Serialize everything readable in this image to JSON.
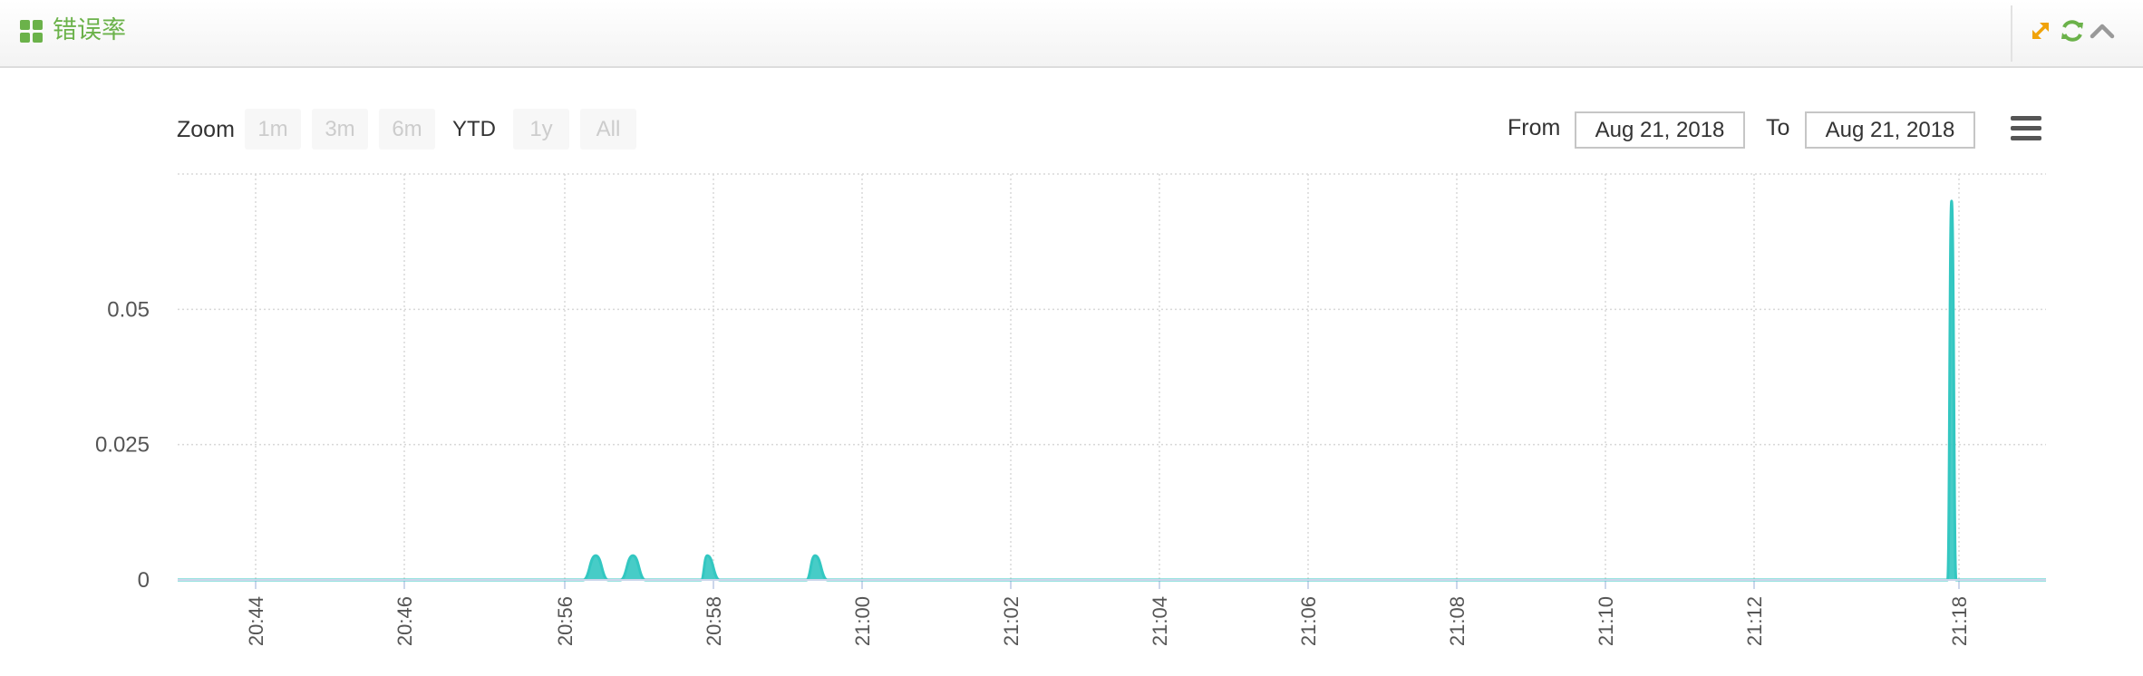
{
  "header": {
    "title": "错误率",
    "accent_color": "#6bb24a",
    "buttons": [
      {
        "name": "expand-icon",
        "color": "#f0a30a"
      },
      {
        "name": "refresh-icon",
        "color": "#6bb24a"
      },
      {
        "name": "chevron-up-icon",
        "color": "#999999"
      }
    ]
  },
  "range_selector": {
    "zoom_label": "Zoom",
    "buttons": [
      "1m",
      "3m",
      "6m",
      "YTD",
      "1y",
      "All"
    ],
    "selected": "YTD",
    "from_label": "From",
    "from_value": "Aug 21, 2018",
    "to_label": "To",
    "to_value": "Aug 21, 2018"
  },
  "menu": {
    "icon": "hamburger-menu-icon"
  },
  "chart_data": {
    "type": "area",
    "series": [
      {
        "color": "#33c7c1",
        "points": [
          [
            "20:42:57",
            0
          ],
          [
            "20:56:15",
            0
          ],
          [
            "20:56:25",
            0.0045
          ],
          [
            "20:56:35",
            0
          ],
          [
            "20:56:45",
            0
          ],
          [
            "20:56:55",
            0.0045
          ],
          [
            "20:57:05",
            0
          ],
          [
            "20:57:50",
            0
          ],
          [
            "20:57:55",
            0.0045
          ],
          [
            "20:58:05",
            0
          ],
          [
            "20:59:15",
            0
          ],
          [
            "20:59:22",
            0.0045
          ],
          [
            "20:59:32",
            0
          ],
          [
            "21:17:40",
            0
          ],
          [
            "21:17:47",
            0.07
          ],
          [
            "21:17:55",
            0
          ],
          [
            "21:18:58",
            0
          ]
        ]
      }
    ],
    "x_ticks": [
      "20:44",
      "20:46",
      "20:56",
      "20:58",
      "21:00",
      "21:02",
      "21:04",
      "21:06",
      "21:08",
      "21:10",
      "21:12",
      "21:18"
    ],
    "y_ticks": [
      "0",
      "0.025",
      "0.05"
    ],
    "ylim": [
      0,
      0.075
    ],
    "grid": true,
    "x_axis": "ordinal time axis (gaps collapsed)"
  }
}
